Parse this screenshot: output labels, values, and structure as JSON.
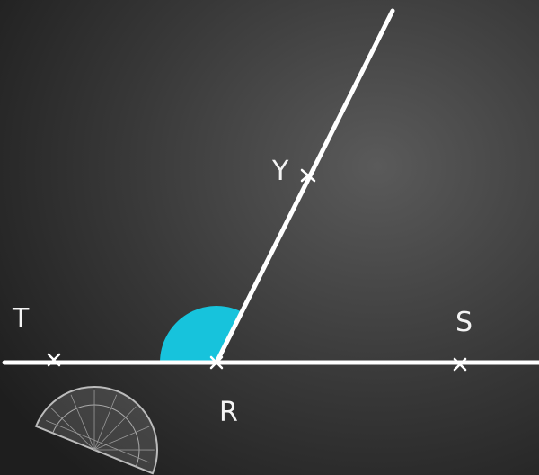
{
  "points": [
    "T",
    "Y",
    "R",
    "S"
  ]
}
